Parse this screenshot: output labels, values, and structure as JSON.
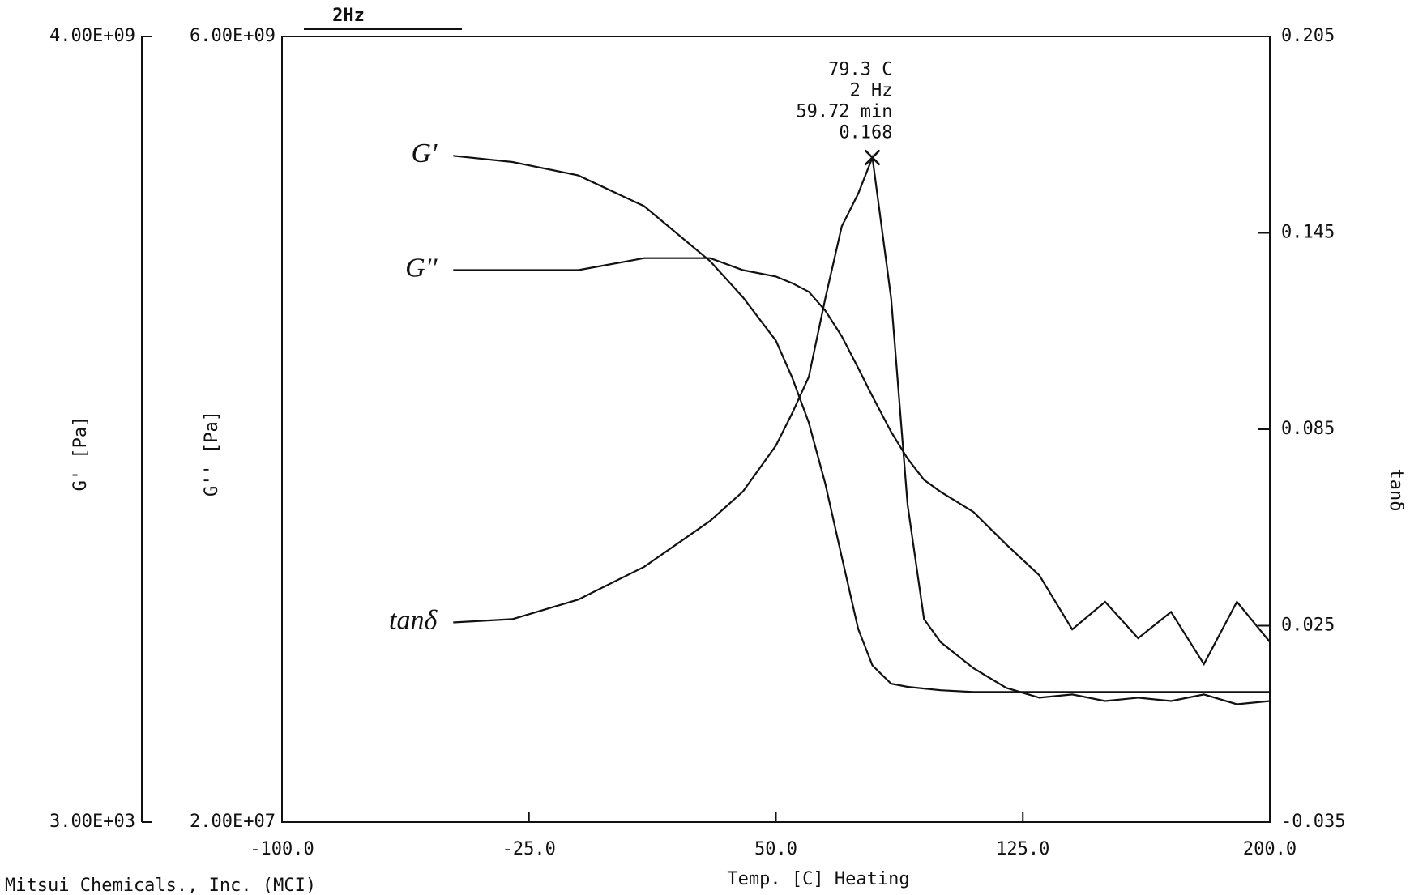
{
  "chart_data": {
    "type": "line",
    "subtitle": "2Hz",
    "x_label": "Temp. [C] Heating",
    "y_label": "G' [Pa]",
    "y2_label": "G'' [Pa]",
    "y3_label": "tanδ",
    "footer": "Mitsui Chemicals., Inc. (MCI)",
    "xlim": [
      -100,
      200
    ],
    "xticks": [
      {
        "value": -100,
        "label": "-100.0"
      },
      {
        "value": -25,
        "label": "-25.0"
      },
      {
        "value": 50,
        "label": "50.0"
      },
      {
        "value": 125,
        "label": "125.0"
      },
      {
        "value": 200,
        "label": "200.0"
      }
    ],
    "ylim": [
      3000,
      4000000000
    ],
    "yticks": [
      {
        "value": 3000,
        "label": "3.00E+03"
      },
      {
        "value": 4000000000,
        "label": "4.00E+09"
      }
    ],
    "y_log_scale": true,
    "y2lim": [
      20000000,
      6000000000
    ],
    "y2ticks": [
      {
        "value": 20000000,
        "label": "2.00E+07"
      },
      {
        "value": 6000000000,
        "label": "6.00E+09"
      }
    ],
    "y2_log_scale": true,
    "y3lim": [
      -0.035,
      0.205
    ],
    "y3ticks": [
      -0.035,
      0.025,
      0.085,
      0.145,
      0.205
    ],
    "x": [
      -48,
      -30,
      -10,
      10,
      30,
      40,
      50,
      55,
      60,
      65,
      70,
      75,
      79.3,
      85,
      90,
      95,
      100,
      110,
      120,
      130,
      140,
      150,
      160,
      170,
      180,
      190,
      200
    ],
    "series": [
      {
        "name": "G'",
        "color": "#111111",
        "axis": "y",
        "values": [
          470000000,
          420000000,
          330000000,
          190000000,
          71000000,
          37000000,
          17000000,
          8700000,
          3900000,
          1300000,
          350000,
          96000,
          50000,
          36000,
          34000,
          33000,
          32000,
          31000,
          31000,
          31000,
          31000,
          31000,
          31000,
          31000,
          31000,
          31000,
          31000
        ]
      },
      {
        "name": "G''",
        "color": "#111111",
        "axis": "y2",
        "values": [
          1100000000,
          1100000000,
          1100000000,
          1200000000,
          1200000000,
          1100000000,
          1050000000,
          1000000000,
          940000000,
          820000000,
          680000000,
          540000000,
          440000000,
          340000000,
          280000000,
          240000000,
          220000000,
          190000000,
          150000000,
          120000000,
          81000000,
          99000000,
          76000000,
          92000000,
          63000000,
          99000000,
          74000000
        ]
      },
      {
        "name": "tanδ",
        "color": "#111111",
        "axis": "y3",
        "values": [
          0.026,
          0.027,
          0.033,
          0.043,
          0.057,
          0.066,
          0.08,
          0.09,
          0.101,
          0.125,
          0.147,
          0.157,
          0.168,
          0.125,
          0.062,
          0.027,
          0.02,
          0.012,
          0.006,
          0.003,
          0.004,
          0.002,
          0.003,
          0.002,
          0.004,
          0.001,
          0.002
        ]
      }
    ],
    "annotation": {
      "x": 79.3,
      "y": 0.168,
      "lines": [
        "79.3 C",
        "2 Hz",
        "59.72 min",
        "0.168"
      ]
    }
  }
}
